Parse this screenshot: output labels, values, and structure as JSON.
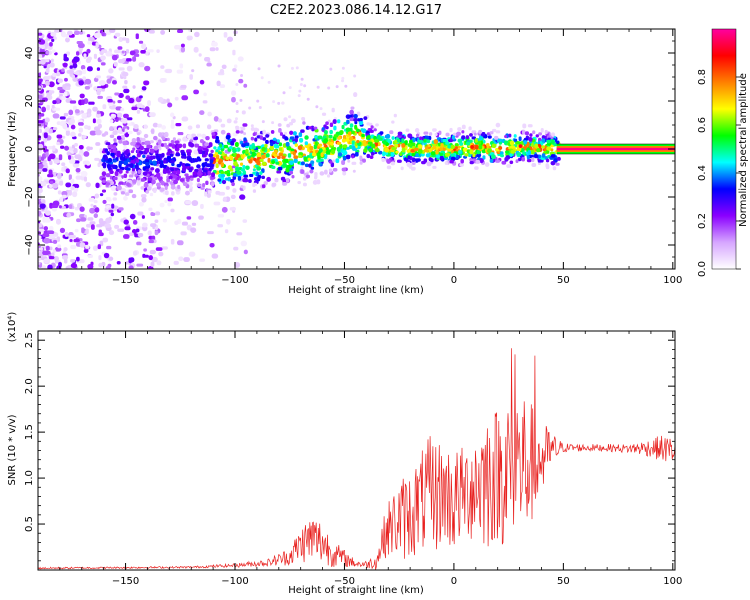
{
  "figure": {
    "title": "C2E2.2023.086.14.12.G17"
  },
  "chart_data": [
    {
      "type": "heatmap",
      "xlabel": "Height of straight line (km)",
      "ylabel": "Frequency (Hz)",
      "xlim": [
        -190,
        101
      ],
      "ylim": [
        -50,
        50
      ],
      "xticks": [
        -150,
        -100,
        -50,
        0,
        50,
        100
      ],
      "yticks": [
        -40,
        -20,
        0,
        20,
        40
      ],
      "colorbar": {
        "label": "Normalized spectral amplitude",
        "range": [
          0.0,
          1.0
        ],
        "ticks": [
          "0.0",
          "0.2",
          "0.4",
          "0.6",
          "0.8"
        ],
        "colors": [
          "#ffffff",
          "#d6a6ff",
          "#8a00ff",
          "#0000ff",
          "#00ffff",
          "#00ff00",
          "#ffff00",
          "#ff8000",
          "#ff0000",
          "#ff00a0"
        ]
      },
      "ridge": {
        "x": [
          -155,
          -140,
          -120,
          -100,
          -90,
          -80,
          -70,
          -60,
          -50,
          -45,
          -40,
          -30,
          -20,
          -10,
          0,
          10,
          20,
          30,
          40,
          47,
          100
        ],
        "y": [
          -5,
          -6,
          -5,
          -5,
          -4,
          -3,
          -1,
          1,
          4,
          6,
          3,
          1,
          0,
          0,
          0,
          1,
          0,
          1,
          0,
          0,
          0
        ]
      },
      "grid": false,
      "legend": "colorbar-right"
    },
    {
      "type": "line",
      "xlabel": "Height of straight line (km)",
      "ylabel": "SNR (10 * v/v)",
      "multiplier": "(x10⁴)",
      "xlim": [
        -190,
        101
      ],
      "ylim": [
        0,
        2.6
      ],
      "xticks": [
        -150,
        -100,
        -50,
        0,
        50,
        100
      ],
      "yticks": [
        0.5,
        1.0,
        1.5,
        2.0,
        2.5
      ],
      "color": "#e8201e",
      "envelope": {
        "x": [
          -190,
          -120,
          -100,
          -85,
          -75,
          -70,
          -65,
          -60,
          -55,
          -45,
          -40,
          -35,
          -33,
          -30,
          -25,
          -20,
          -15,
          -10,
          -5,
          0,
          5,
          10,
          15,
          20,
          25,
          30,
          35,
          40,
          45,
          50,
          60,
          70,
          80,
          90,
          95,
          101
        ],
        "center": [
          0.02,
          0.03,
          0.05,
          0.08,
          0.15,
          0.28,
          0.35,
          0.3,
          0.18,
          0.07,
          0.06,
          0.1,
          0.3,
          0.45,
          0.55,
          0.6,
          0.75,
          0.8,
          0.85,
          0.75,
          0.85,
          0.95,
          1.0,
          1.05,
          1.1,
          1.15,
          1.15,
          1.2,
          1.3,
          1.33,
          1.33,
          1.33,
          1.32,
          1.33,
          1.32,
          1.3
        ],
        "amplitude": [
          0.01,
          0.01,
          0.02,
          0.04,
          0.1,
          0.2,
          0.28,
          0.25,
          0.15,
          0.04,
          0.04,
          0.1,
          0.2,
          0.3,
          0.45,
          0.5,
          0.55,
          0.7,
          0.55,
          0.6,
          0.5,
          0.7,
          0.8,
          0.75,
          0.9,
          0.95,
          0.7,
          0.45,
          0.2,
          0.05,
          0.04,
          0.04,
          0.05,
          0.1,
          0.15,
          0.15
        ]
      },
      "grid": false
    }
  ]
}
